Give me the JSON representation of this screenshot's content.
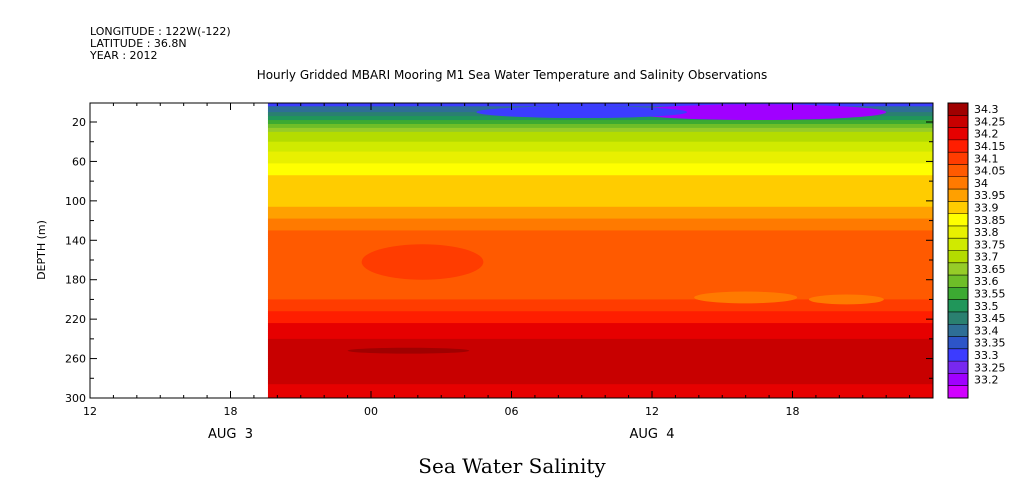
{
  "header": {
    "longitude": "LONGITUDE : 122W(-122)",
    "latitude": "LATITUDE : 36.8N",
    "year": "YEAR : 2012"
  },
  "chart_title": "Hourly Gridded MBARI Mooring M1 Sea Water Temperature and Salinity Observations",
  "main_title": "Sea Water Salinity",
  "chart_data": {
    "type": "heatmap",
    "variable": "Sea Water Salinity",
    "ylabel": "DEPTH (m)",
    "ylim": [
      300,
      0
    ],
    "y_ticks": [
      "20",
      "60",
      "100",
      "140",
      "180",
      "220",
      "260",
      "300"
    ],
    "x_range_hours": [
      0,
      36
    ],
    "x_ticks": [
      "12",
      "18",
      "00",
      "06",
      "12",
      "18"
    ],
    "date_labels": [
      "AUG 3",
      "AUG 4"
    ],
    "data_start_hour": 7.6,
    "colorbar_levels": [
      "34.3",
      "34.25",
      "34.2",
      "34.15",
      "34.1",
      "34.05",
      "34",
      "33.95",
      "33.9",
      "33.85",
      "33.8",
      "33.75",
      "33.7",
      "33.65",
      "33.6",
      "33.55",
      "33.5",
      "33.45",
      "33.4",
      "33.35",
      "33.3",
      "33.25",
      "33.2"
    ],
    "colorbar_colors": [
      "#a00000",
      "#c80000",
      "#e60000",
      "#ff1e00",
      "#ff3c00",
      "#ff5a00",
      "#ff7a00",
      "#ffa000",
      "#ffcc00",
      "#ffff00",
      "#e8f000",
      "#d0ea00",
      "#b4dc00",
      "#96cc28",
      "#6ebe28",
      "#3caa32",
      "#20965a",
      "#2a8070",
      "#2e6e96",
      "#2d55c8",
      "#3c3cff",
      "#7828f0",
      "#a000ff",
      "#d200ff"
    ],
    "depth_profile": [
      {
        "depth": 0,
        "salinity": 33.35
      },
      {
        "depth": 10,
        "salinity": 33.45
      },
      {
        "depth": 20,
        "salinity": 33.58
      },
      {
        "depth": 30,
        "salinity": 33.7
      },
      {
        "depth": 45,
        "salinity": 33.78
      },
      {
        "depth": 60,
        "salinity": 33.84
      },
      {
        "depth": 75,
        "salinity": 33.9
      },
      {
        "depth": 100,
        "salinity": 33.93
      },
      {
        "depth": 115,
        "salinity": 33.98
      },
      {
        "depth": 125,
        "salinity": 34.03
      },
      {
        "depth": 140,
        "salinity": 34.08
      },
      {
        "depth": 200,
        "salinity": 34.1
      },
      {
        "depth": 212,
        "salinity": 34.15
      },
      {
        "depth": 225,
        "salinity": 34.2
      },
      {
        "depth": 235,
        "salinity": 34.22
      },
      {
        "depth": 245,
        "salinity": 34.27
      },
      {
        "depth": 280,
        "salinity": 34.27
      },
      {
        "depth": 300,
        "salinity": 34.2
      }
    ]
  }
}
